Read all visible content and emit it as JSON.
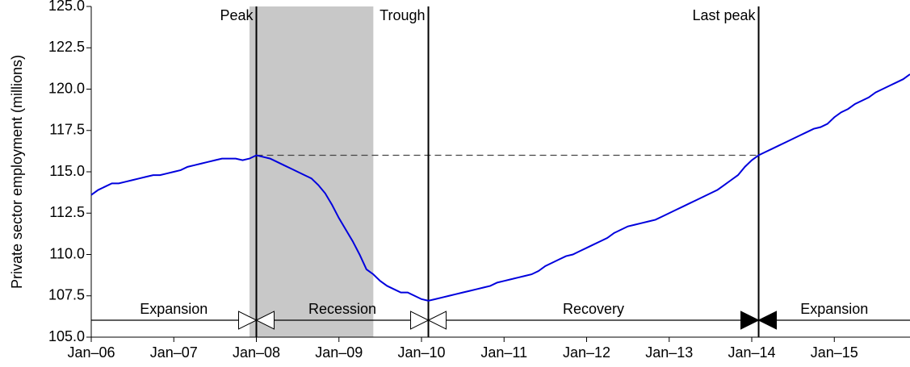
{
  "chart_data": {
    "type": "line",
    "y_label": "Private sector employment (millions)",
    "x": [
      "2006-01",
      "2006-02",
      "2006-03",
      "2006-04",
      "2006-05",
      "2006-06",
      "2006-07",
      "2006-08",
      "2006-09",
      "2006-10",
      "2006-11",
      "2006-12",
      "2007-01",
      "2007-02",
      "2007-03",
      "2007-04",
      "2007-05",
      "2007-06",
      "2007-07",
      "2007-08",
      "2007-09",
      "2007-10",
      "2007-11",
      "2007-12",
      "2008-01",
      "2008-02",
      "2008-03",
      "2008-04",
      "2008-05",
      "2008-06",
      "2008-07",
      "2008-08",
      "2008-09",
      "2008-10",
      "2008-11",
      "2008-12",
      "2009-01",
      "2009-02",
      "2009-03",
      "2009-04",
      "2009-05",
      "2009-06",
      "2009-07",
      "2009-08",
      "2009-09",
      "2009-10",
      "2009-11",
      "2009-12",
      "2010-01",
      "2010-02",
      "2010-03",
      "2010-04",
      "2010-05",
      "2010-06",
      "2010-07",
      "2010-08",
      "2010-09",
      "2010-10",
      "2010-11",
      "2010-12",
      "2011-01",
      "2011-02",
      "2011-03",
      "2011-04",
      "2011-05",
      "2011-06",
      "2011-07",
      "2011-08",
      "2011-09",
      "2011-10",
      "2011-11",
      "2011-12",
      "2012-01",
      "2012-02",
      "2012-03",
      "2012-04",
      "2012-05",
      "2012-06",
      "2012-07",
      "2012-08",
      "2012-09",
      "2012-10",
      "2012-11",
      "2012-12",
      "2013-01",
      "2013-02",
      "2013-03",
      "2013-04",
      "2013-05",
      "2013-06",
      "2013-07",
      "2013-08",
      "2013-09",
      "2013-10",
      "2013-11",
      "2013-12",
      "2014-01",
      "2014-02",
      "2014-03",
      "2014-04",
      "2014-05",
      "2014-06",
      "2014-07",
      "2014-08",
      "2014-09",
      "2014-10",
      "2014-11",
      "2014-12",
      "2015-01",
      "2015-02",
      "2015-03",
      "2015-04",
      "2015-05",
      "2015-06",
      "2015-07",
      "2015-08",
      "2015-09",
      "2015-10",
      "2015-11",
      "2015-12"
    ],
    "series": [
      {
        "color": "#0000dd",
        "values": [
          113.6,
          113.9,
          114.1,
          114.3,
          114.3,
          114.4,
          114.5,
          114.6,
          114.7,
          114.8,
          114.8,
          114.9,
          115.0,
          115.1,
          115.3,
          115.4,
          115.5,
          115.6,
          115.7,
          115.8,
          115.8,
          115.8,
          115.7,
          115.8,
          116.0,
          115.9,
          115.8,
          115.6,
          115.4,
          115.2,
          115.0,
          114.8,
          114.6,
          114.2,
          113.7,
          113.0,
          112.2,
          111.5,
          110.8,
          110.0,
          109.1,
          108.8,
          108.4,
          108.1,
          107.9,
          107.7,
          107.7,
          107.5,
          107.3,
          107.2,
          107.3,
          107.4,
          107.5,
          107.6,
          107.7,
          107.8,
          107.9,
          108.0,
          108.1,
          108.3,
          108.4,
          108.5,
          108.6,
          108.7,
          108.8,
          109.0,
          109.3,
          109.5,
          109.7,
          109.9,
          110.0,
          110.2,
          110.4,
          110.6,
          110.8,
          111.0,
          111.3,
          111.5,
          111.7,
          111.8,
          111.9,
          112.0,
          112.1,
          112.3,
          112.5,
          112.7,
          112.9,
          113.1,
          113.3,
          113.5,
          113.7,
          113.9,
          114.2,
          114.5,
          114.8,
          115.3,
          115.7,
          116.0,
          116.2,
          116.4,
          116.6,
          116.8,
          117.0,
          117.2,
          117.4,
          117.6,
          117.7,
          117.9,
          118.3,
          118.6,
          118.8,
          119.1,
          119.3,
          119.5,
          119.8,
          120.0,
          120.2,
          120.4,
          120.6,
          120.9
        ]
      }
    ],
    "xlim": [
      "2006-01",
      "2015-12"
    ],
    "xticks": [
      {
        "value": "2006-01",
        "label": "Jan–06"
      },
      {
        "value": "2007-01",
        "label": "Jan–07"
      },
      {
        "value": "2008-01",
        "label": "Jan–08"
      },
      {
        "value": "2009-01",
        "label": "Jan–09"
      },
      {
        "value": "2010-01",
        "label": "Jan–10"
      },
      {
        "value": "2011-01",
        "label": "Jan–11"
      },
      {
        "value": "2012-01",
        "label": "Jan–12"
      },
      {
        "value": "2013-01",
        "label": "Jan–13"
      },
      {
        "value": "2014-01",
        "label": "Jan–14"
      },
      {
        "value": "2015-01",
        "label": "Jan–15"
      }
    ],
    "ylim": [
      105,
      125
    ],
    "yticks": [
      {
        "value": 105,
        "label": "105.0"
      },
      {
        "value": 107.5,
        "label": "107.5"
      },
      {
        "value": 110,
        "label": "110.0"
      },
      {
        "value": 112.5,
        "label": "112.5"
      },
      {
        "value": 115,
        "label": "115.0"
      },
      {
        "value": 117.5,
        "label": "117.5"
      },
      {
        "value": 120,
        "label": "120.0"
      },
      {
        "value": 122.5,
        "label": "122.5"
      },
      {
        "value": 125,
        "label": "125.0"
      }
    ],
    "recession": {
      "start": "2007-12",
      "end": "2009-06",
      "color": "#c8c8c8"
    },
    "events": [
      {
        "label": "Peak",
        "x": "2008-01",
        "filled": false
      },
      {
        "label": "Trough",
        "x": "2010-02",
        "filled": false
      },
      {
        "label": "Last peak",
        "x": "2014-02",
        "filled": true
      }
    ],
    "phases": [
      "Expansion",
      "Recession",
      "Recovery",
      "Expansion"
    ]
  }
}
